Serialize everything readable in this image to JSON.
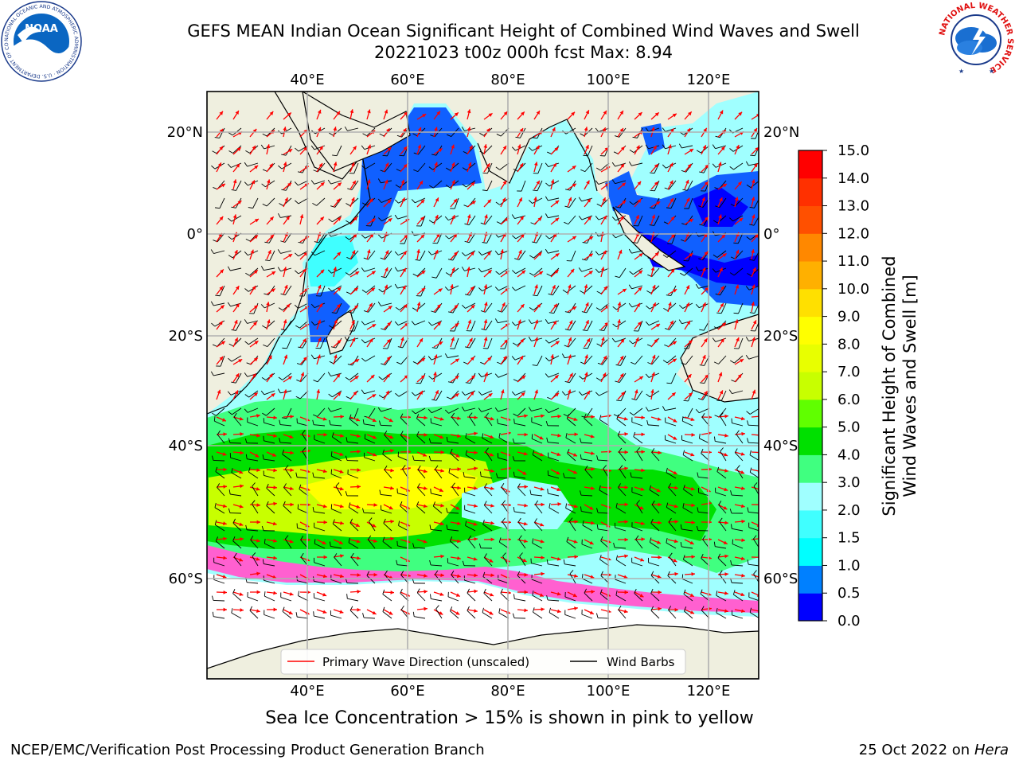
{
  "title": {
    "line1": "GEFS MEAN Indian Ocean Significant Height of Combined Wind Waves and Swell",
    "line2": "20221023 t00z 000h fcst   Max: 8.94"
  },
  "logos": {
    "left": {
      "icon": "noaa-logo",
      "text": "NOAA",
      "ring_text": "NATIONAL OCEANIC AND ATMOSPHERIC ADMINISTRATION · U.S. DEPARTMENT OF COMMERCE"
    },
    "right": {
      "icon": "nws-logo",
      "ring_text": "NATIONAL WEATHER SERVICE"
    }
  },
  "map": {
    "lon_range": [
      20,
      130
    ],
    "lat_range": [
      -70,
      28
    ],
    "lon_ticks": [
      "40°E",
      "60°E",
      "80°E",
      "100°E",
      "120°E"
    ],
    "lat_ticks": [
      "20°N",
      "0°",
      "20°S",
      "40°S",
      "60°S"
    ],
    "grid": true,
    "land_color": "#efefdf",
    "legend": {
      "placement": "bottom-center",
      "wave_label": "Primary Wave Direction (unscaled)",
      "wind_label": "Wind Barbs",
      "wave_color": "#ff0000",
      "wind_color": "#000000"
    }
  },
  "colorbar": {
    "label_line1": "Significant Height of Combined",
    "label_line2": "Wind Waves and Swell [m]",
    "tick_labels": [
      "0.0",
      "0.5",
      "1.0",
      "1.5",
      "2.0",
      "3.0",
      "4.0",
      "5.0",
      "6.0",
      "7.0",
      "8.0",
      "9.0",
      "10.0",
      "11.0",
      "12.0",
      "13.0",
      "14.0",
      "15.0"
    ],
    "colors": [
      "#0000ff",
      "#0080ff",
      "#00ffff",
      "#40ffff",
      "#a0ffff",
      "#40ff80",
      "#00e000",
      "#60ff00",
      "#c8ff00",
      "#e8ff00",
      "#ffff00",
      "#ffe000",
      "#ffb000",
      "#ff8800",
      "#ff5000",
      "#ff3000",
      "#ff0000"
    ]
  },
  "footer": {
    "sea_ice_note": "Sea Ice Concentration > 15% is shown in pink to yellow",
    "credit_left": "NCEP/EMC/Verification Post Processing Product Generation Branch",
    "credit_right_date": "25 Oct 2022 on ",
    "credit_right_host": "Hera"
  }
}
